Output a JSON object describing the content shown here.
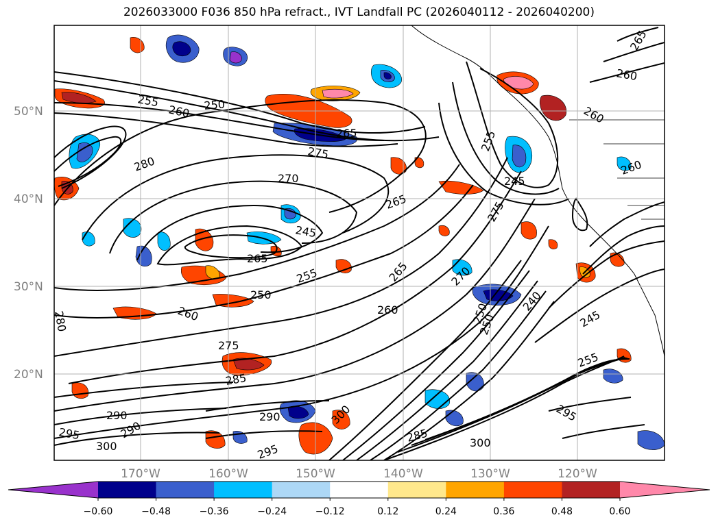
{
  "title": "2026033000 F036 850 hPa refract., IVT Landfall PC (2026040112 - 2026040200)",
  "lat_labels": [
    "50°N",
    "40°N",
    "30°N",
    "20°N"
  ],
  "lon_labels": [
    "170°W",
    "160°W",
    "150°W",
    "140°W",
    "130°W",
    "120°W"
  ],
  "colorbar": {
    "colors": [
      "#9932cc",
      "#00008b",
      "#3a5fcd",
      "#00bfff",
      "#add8f6",
      "#ffffff",
      "#ffe88c",
      "#ffa500",
      "#ff4500",
      "#b22222",
      "#ff88aa"
    ],
    "labels": [
      "-0.60",
      "-0.48",
      "-0.36",
      "-0.24",
      "-0.12",
      "0.12",
      "0.24",
      "0.36",
      "0.48",
      "0.60"
    ]
  },
  "contour_labels": [
    "255",
    "260",
    "250",
    "265",
    "275",
    "280",
    "270",
    "245",
    "280",
    "260",
    "265",
    "250",
    "255",
    "260",
    "270",
    "265",
    "250",
    "240",
    "245",
    "255",
    "275",
    "290",
    "295",
    "300",
    "290",
    "295",
    "300",
    "290",
    "285",
    "295",
    "300",
    "285",
    "265",
    "260",
    "255",
    "265",
    "260",
    "250",
    "245",
    "275",
    "260",
    "270",
    "290"
  ]
}
